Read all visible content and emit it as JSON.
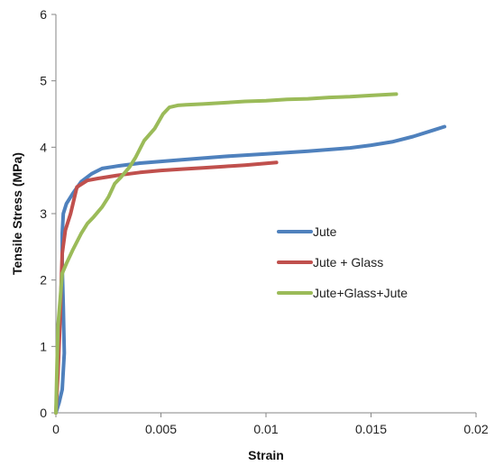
{
  "chart_data": {
    "type": "line",
    "title": "",
    "xlabel": "Strain",
    "ylabel": "Tensile Stress (MPa)",
    "xlim": [
      0,
      0.02
    ],
    "ylim": [
      0,
      6
    ],
    "x_ticks": [
      0,
      0.005,
      0.01,
      0.015,
      0.02
    ],
    "x_tick_labels": [
      "0",
      "0.005",
      "0.01",
      "0.015",
      "0.02"
    ],
    "y_ticks": [
      0,
      1,
      2,
      3,
      4,
      5,
      6
    ],
    "y_tick_labels": [
      "0",
      "1",
      "2",
      "3",
      "4",
      "5",
      "6"
    ],
    "grid": false,
    "legend_position": "right-center",
    "series": [
      {
        "name": "Jute",
        "color": "#4F81BD",
        "x": [
          0,
          0.00015,
          0.0003,
          0.0004,
          0.00035,
          0.0003,
          0.0003,
          0.00035,
          0.0005,
          0.0008,
          0.0012,
          0.0017,
          0.0022,
          0.003,
          0.004,
          0.006,
          0.008,
          0.01,
          0.012,
          0.014,
          0.015,
          0.016,
          0.017,
          0.018,
          0.0185
        ],
        "y": [
          0,
          0.15,
          0.35,
          0.9,
          1.6,
          2.2,
          2.7,
          3.0,
          3.15,
          3.3,
          3.48,
          3.6,
          3.68,
          3.72,
          3.76,
          3.81,
          3.86,
          3.9,
          3.94,
          3.99,
          4.03,
          4.08,
          4.16,
          4.26,
          4.31
        ]
      },
      {
        "name": "Jute + Glass",
        "color": "#C0504D",
        "x": [
          0,
          0.0001,
          0.0002,
          0.00025,
          0.0003,
          0.00045,
          0.0007,
          0.001,
          0.0015,
          0.002,
          0.003,
          0.004,
          0.005,
          0.006,
          0.007,
          0.008,
          0.009,
          0.0105
        ],
        "y": [
          0,
          0.6,
          1.4,
          1.9,
          2.4,
          2.75,
          3.0,
          3.4,
          3.5,
          3.53,
          3.58,
          3.62,
          3.65,
          3.67,
          3.69,
          3.71,
          3.73,
          3.77
        ]
      },
      {
        "name": "Jute+Glass+Jute",
        "color": "#9BBB59",
        "x": [
          0,
          5e-05,
          0.0001,
          0.0002,
          0.0003,
          0.0005,
          0.0008,
          0.0012,
          0.0015,
          0.0018,
          0.0022,
          0.0025,
          0.0028,
          0.0031,
          0.0035,
          0.0038,
          0.0042,
          0.0047,
          0.0051,
          0.0054,
          0.0058,
          0.0062,
          0.007,
          0.008,
          0.009,
          0.01,
          0.011,
          0.012,
          0.013,
          0.014,
          0.015,
          0.0162
        ],
        "y": [
          0,
          0.7,
          1.3,
          1.7,
          2.1,
          2.25,
          2.45,
          2.7,
          2.85,
          2.95,
          3.1,
          3.25,
          3.45,
          3.55,
          3.7,
          3.85,
          4.1,
          4.28,
          4.5,
          4.6,
          4.63,
          4.64,
          4.65,
          4.67,
          4.69,
          4.7,
          4.72,
          4.73,
          4.75,
          4.76,
          4.78,
          4.8
        ]
      }
    ]
  }
}
